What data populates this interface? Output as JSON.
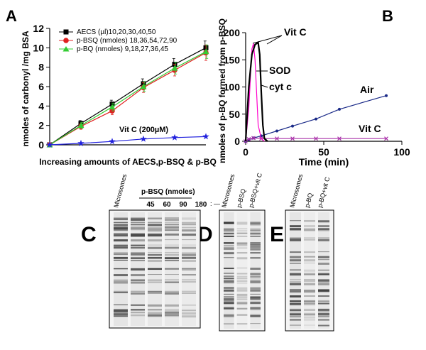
{
  "chart_data": [
    {
      "panel": "A",
      "type": "line",
      "xlabel": "Increasing amounts of AECS,p-BSQ & p-BQ",
      "ylabel": "nmoles of carbonyl /mg BSA",
      "ylim": [
        0,
        12
      ],
      "yticks": [
        0,
        2,
        4,
        6,
        8,
        10,
        12
      ],
      "x": [
        0,
        1,
        2,
        3,
        4,
        5
      ],
      "series": [
        {
          "name": "AECS (µl)10,20,30,40,50",
          "color": "#000000",
          "marker": "square",
          "values": [
            0.0,
            2.2,
            4.2,
            6.3,
            8.3,
            10.0
          ],
          "err": [
            0,
            0.3,
            0.4,
            0.5,
            0.6,
            0.7
          ]
        },
        {
          "name": "p-BSQ (nmoles) 18,36,54,72,90",
          "color": "#e02020",
          "marker": "circle",
          "values": [
            0.0,
            1.9,
            3.5,
            5.9,
            7.7,
            9.5
          ],
          "err": [
            0,
            0.3,
            0.4,
            0.5,
            0.6,
            0.8
          ]
        },
        {
          "name": "p-BQ (nmoles) 9,18,27,36,45",
          "color": "#33cc33",
          "marker": "triangle",
          "values": [
            0.0,
            2.0,
            3.9,
            6.0,
            7.9,
            9.6
          ],
          "err": [
            0,
            0.3,
            0.4,
            0.5,
            0.6,
            0.7
          ]
        },
        {
          "name": "Vit C (200µM)",
          "color": "#2222dd",
          "marker": "star",
          "values": [
            0.0,
            0.15,
            0.35,
            0.6,
            0.75,
            0.85
          ],
          "err": [
            0,
            0,
            0,
            0,
            0,
            0
          ]
        }
      ],
      "annotation": "Vit C (200µM)"
    },
    {
      "panel": "B",
      "type": "line",
      "xlabel": "Time (min)",
      "ylabel": "nmoles of p-BQ formed from p-BSQ",
      "xlim": [
        0,
        100
      ],
      "ylim": [
        0,
        200
      ],
      "xticks": [
        0,
        50,
        100
      ],
      "yticks": [
        0,
        50,
        100,
        150,
        200
      ],
      "series": [
        {
          "name": "Air",
          "color": "#1a2a88",
          "marker": "dot",
          "x": [
            0,
            2,
            5,
            10,
            20,
            30,
            45,
            60,
            90
          ],
          "y": [
            0,
            3,
            6,
            10,
            19,
            28,
            41,
            59,
            84
          ]
        },
        {
          "name": "Vit C",
          "color": "#aa33aa",
          "marker": "x",
          "x": [
            0,
            2,
            5,
            10,
            20,
            30,
            45,
            60,
            90
          ],
          "y": [
            0,
            4,
            6,
            5,
            5,
            5,
            5,
            5,
            5
          ]
        },
        {
          "name": "SOD",
          "color": "#ff00cc",
          "marker": "none",
          "x": [
            0,
            2,
            4,
            5,
            6,
            7,
            8,
            10,
            12
          ],
          "y": [
            0,
            60,
            170,
            180,
            150,
            90,
            30,
            5,
            0
          ]
        },
        {
          "name": "cyt c",
          "color": "#000000",
          "marker": "none",
          "x": [
            0,
            2,
            4,
            6,
            8,
            9,
            10,
            11,
            12,
            14
          ],
          "y": [
            0,
            100,
            160,
            178,
            182,
            160,
            90,
            30,
            5,
            0
          ]
        }
      ],
      "annotations": [
        "Vit C",
        "SOD",
        "cyt c",
        "Air",
        "Vit C"
      ]
    }
  ],
  "panel_labels": {
    "a": "A",
    "b": "B",
    "c": "C",
    "d": "D",
    "e": "E"
  },
  "gel_c": {
    "lanes": [
      "Microsomes"
    ],
    "group_label": "p-BSQ (nmoles)",
    "doses": [
      "45",
      "60",
      "90",
      "180"
    ],
    "doses_suffix": ": —"
  },
  "gel_d": {
    "lanes": [
      "Microsomes",
      "p-BSQ",
      "p-BSQ+vit C"
    ]
  },
  "gel_e": {
    "lanes": [
      "Microsomes",
      "p-BQ",
      "p-BQ+vit C"
    ]
  }
}
